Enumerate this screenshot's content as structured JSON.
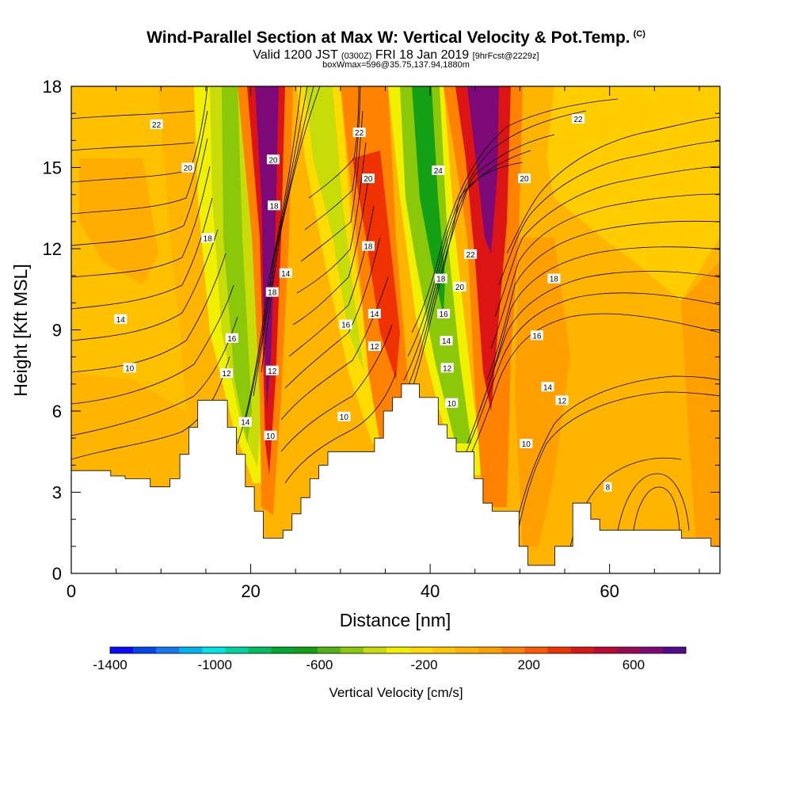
{
  "header": {
    "title": "Wind-Parallel Section at Max W: Vertical Velocity & Pot.Temp.",
    "title_units": "(C)",
    "valid_prefix": "Valid 1200 JST",
    "valid_utc": "(0300Z)",
    "valid_date": "FRI 18 Jan 2019",
    "forecast": "[9hrFcst@2229z]",
    "subtitle": "boxWmax=596@35.75,137.94,1880m"
  },
  "colorbar": {
    "title": "Vertical Velocity [cm/s]",
    "tick_labels": [
      "-1400",
      "-1000",
      "-600",
      "-200",
      "200",
      "600"
    ],
    "tick_values": [
      -1400,
      -1000,
      -600,
      -200,
      200,
      600
    ],
    "colors": [
      "#0a0aff",
      "#0046f0",
      "#1478f0",
      "#00b4f0",
      "#00e6e6",
      "#00d2a0",
      "#00be64",
      "#00aa32",
      "#14a014",
      "#50b414",
      "#8cc80a",
      "#c8dc0a",
      "#f0f000",
      "#ffdc00",
      "#ffc800",
      "#ffb400",
      "#ffa000",
      "#ff8200",
      "#ff5a00",
      "#f03200",
      "#dc1414",
      "#be0a32",
      "#9b0a55",
      "#7d0a78",
      "#550a8c"
    ]
  },
  "chart_data": {
    "type": "heatmap",
    "xlabel": "Distance [nm]",
    "ylabel": "Height [Kft MSL]",
    "xlim": [
      0,
      72.3
    ],
    "ylim": [
      0,
      18
    ],
    "x_ticks": [
      0,
      20,
      40,
      60
    ],
    "y_ticks": [
      0,
      3,
      6,
      9,
      12,
      15,
      18
    ],
    "z_range": [
      -1400,
      800
    ],
    "terrain_profile": [
      [
        0,
        3.8
      ],
      [
        4.4,
        3.8
      ],
      [
        4.4,
        3.6
      ],
      [
        6.0,
        3.6
      ],
      [
        6.0,
        3.5
      ],
      [
        8.8,
        3.5
      ],
      [
        8.8,
        3.2
      ],
      [
        11.0,
        3.2
      ],
      [
        11.0,
        3.5
      ],
      [
        12.1,
        3.5
      ],
      [
        12.1,
        4.4
      ],
      [
        13.1,
        4.4
      ],
      [
        13.1,
        5.4
      ],
      [
        14.1,
        5.4
      ],
      [
        14.1,
        6.4
      ],
      [
        17.4,
        6.4
      ],
      [
        17.4,
        5.4
      ],
      [
        18.4,
        5.4
      ],
      [
        18.4,
        4.4
      ],
      [
        19.4,
        4.4
      ],
      [
        19.4,
        3.2
      ],
      [
        20.4,
        3.2
      ],
      [
        20.4,
        2.3
      ],
      [
        21.4,
        2.3
      ],
      [
        21.4,
        1.3
      ],
      [
        23.6,
        1.3
      ],
      [
        23.6,
        1.6
      ],
      [
        24.6,
        1.6
      ],
      [
        24.6,
        2.2
      ],
      [
        25.6,
        2.2
      ],
      [
        25.6,
        2.8
      ],
      [
        26.6,
        2.8
      ],
      [
        26.6,
        3.5
      ],
      [
        27.6,
        3.5
      ],
      [
        27.6,
        4.0
      ],
      [
        28.6,
        4.0
      ],
      [
        28.6,
        4.5
      ],
      [
        33.8,
        4.5
      ],
      [
        33.8,
        5.0
      ],
      [
        34.8,
        5.0
      ],
      [
        34.8,
        6.0
      ],
      [
        35.8,
        6.0
      ],
      [
        35.8,
        6.5
      ],
      [
        36.8,
        6.5
      ],
      [
        36.8,
        7.0
      ],
      [
        38.8,
        7.0
      ],
      [
        38.8,
        6.5
      ],
      [
        40.9,
        6.5
      ],
      [
        40.9,
        5.5
      ],
      [
        41.9,
        5.5
      ],
      [
        41.9,
        5.0
      ],
      [
        42.9,
        5.0
      ],
      [
        42.9,
        4.5
      ],
      [
        44.9,
        4.5
      ],
      [
        44.9,
        3.5
      ],
      [
        45.9,
        3.5
      ],
      [
        45.9,
        2.6
      ],
      [
        46.9,
        2.6
      ],
      [
        46.9,
        2.3
      ],
      [
        49.9,
        2.3
      ],
      [
        49.9,
        1.0
      ],
      [
        50.9,
        1.0
      ],
      [
        50.9,
        0.3
      ],
      [
        53.9,
        0.3
      ],
      [
        53.9,
        1.0
      ],
      [
        55.9,
        1.0
      ],
      [
        55.9,
        2.6
      ],
      [
        57.9,
        2.6
      ],
      [
        57.9,
        2.0
      ],
      [
        58.9,
        2.0
      ],
      [
        58.9,
        1.6
      ],
      [
        68.0,
        1.6
      ],
      [
        68.0,
        1.3
      ],
      [
        71.3,
        1.3
      ],
      [
        71.3,
        1.0
      ],
      [
        72.3,
        1.0
      ]
    ],
    "contour_labels": [
      {
        "x": 9.5,
        "y": 16.6,
        "label": "22"
      },
      {
        "x": 13.0,
        "y": 15.0,
        "label": "20"
      },
      {
        "x": 15.2,
        "y": 12.4,
        "label": "18"
      },
      {
        "x": 5.5,
        "y": 9.4,
        "label": "14"
      },
      {
        "x": 6.5,
        "y": 7.6,
        "label": "10"
      },
      {
        "x": 17.9,
        "y": 8.7,
        "label": "16"
      },
      {
        "x": 17.3,
        "y": 7.4,
        "label": "12"
      },
      {
        "x": 19.4,
        "y": 5.6,
        "label": "14"
      },
      {
        "x": 22.5,
        "y": 15.3,
        "label": "20"
      },
      {
        "x": 22.6,
        "y": 13.6,
        "label": "18"
      },
      {
        "x": 23.9,
        "y": 11.1,
        "label": "14"
      },
      {
        "x": 22.4,
        "y": 10.4,
        "label": "18"
      },
      {
        "x": 22.4,
        "y": 7.5,
        "label": "12"
      },
      {
        "x": 22.2,
        "y": 5.1,
        "label": "10"
      },
      {
        "x": 32.1,
        "y": 16.3,
        "label": "22"
      },
      {
        "x": 33.1,
        "y": 14.6,
        "label": "20"
      },
      {
        "x": 33.1,
        "y": 12.1,
        "label": "18"
      },
      {
        "x": 30.6,
        "y": 9.2,
        "label": "16"
      },
      {
        "x": 33.8,
        "y": 9.6,
        "label": "14"
      },
      {
        "x": 33.8,
        "y": 8.4,
        "label": "12"
      },
      {
        "x": 30.4,
        "y": 5.8,
        "label": "10"
      },
      {
        "x": 40.9,
        "y": 14.9,
        "label": "24"
      },
      {
        "x": 44.5,
        "y": 11.8,
        "label": "22"
      },
      {
        "x": 41.2,
        "y": 10.9,
        "label": "18"
      },
      {
        "x": 43.3,
        "y": 10.6,
        "label": "20"
      },
      {
        "x": 41.5,
        "y": 9.6,
        "label": "16"
      },
      {
        "x": 41.8,
        "y": 8.6,
        "label": "14"
      },
      {
        "x": 41.9,
        "y": 7.6,
        "label": "12"
      },
      {
        "x": 42.4,
        "y": 6.3,
        "label": "10"
      },
      {
        "x": 56.5,
        "y": 16.8,
        "label": "22"
      },
      {
        "x": 50.5,
        "y": 14.6,
        "label": "20"
      },
      {
        "x": 53.8,
        "y": 10.9,
        "label": "18"
      },
      {
        "x": 51.9,
        "y": 8.8,
        "label": "16"
      },
      {
        "x": 53.1,
        "y": 6.9,
        "label": "14"
      },
      {
        "x": 54.7,
        "y": 6.4,
        "label": "12"
      },
      {
        "x": 50.7,
        "y": 4.8,
        "label": "10"
      },
      {
        "x": 59.8,
        "y": 3.2,
        "label": "8"
      }
    ]
  }
}
